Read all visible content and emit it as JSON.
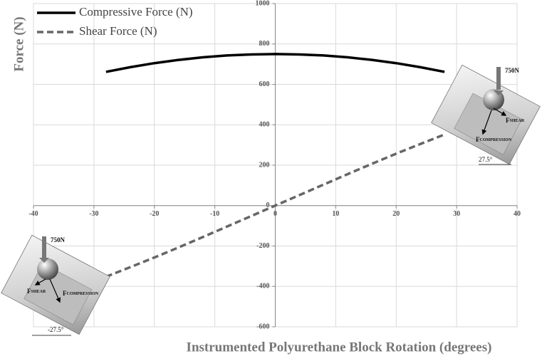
{
  "chart_data": {
    "type": "line",
    "xlabel": "Instrumented Polyurethane Block Rotation (degrees)",
    "ylabel": "Force (N)",
    "x": [
      -28,
      -24,
      -20,
      -16,
      -12,
      -8,
      -4,
      0,
      4,
      8,
      12,
      16,
      20,
      24,
      28
    ],
    "series": [
      {
        "name": "Compressive Force (N)",
        "color": "#000000",
        "dash": "solid",
        "values": [
          662,
          685,
          705,
          721,
          734,
          743,
          748,
          750,
          748,
          743,
          734,
          721,
          705,
          685,
          662
        ]
      },
      {
        "name": "Shear Force (N)",
        "color": "#666666",
        "dash": "dashed",
        "values": [
          -352,
          -305,
          -257,
          -207,
          -156,
          -104,
          -52,
          0,
          52,
          104,
          156,
          207,
          257,
          305,
          352
        ]
      }
    ],
    "xlim": [
      -40,
      40
    ],
    "xticks": [
      -40,
      -30,
      -20,
      -10,
      0,
      10,
      20,
      30,
      40
    ],
    "ylim": [
      -600,
      1000
    ],
    "yticks": [
      -600,
      -400,
      -200,
      0,
      200,
      400,
      600,
      800,
      1000
    ],
    "grid": true,
    "legend": "upper left",
    "insets": [
      {
        "load": "750N",
        "shear_symbol": "F",
        "shear_sub": "SHEAR",
        "comp_symbol": "F",
        "comp_sub": "COMPRESSION",
        "angle": "27.5°"
      },
      {
        "load": "750N",
        "shear_symbol": "F",
        "shear_sub": "SHEAR",
        "comp_symbol": "F",
        "comp_sub": "COMPRESSION",
        "angle": "-27.5°"
      }
    ]
  }
}
